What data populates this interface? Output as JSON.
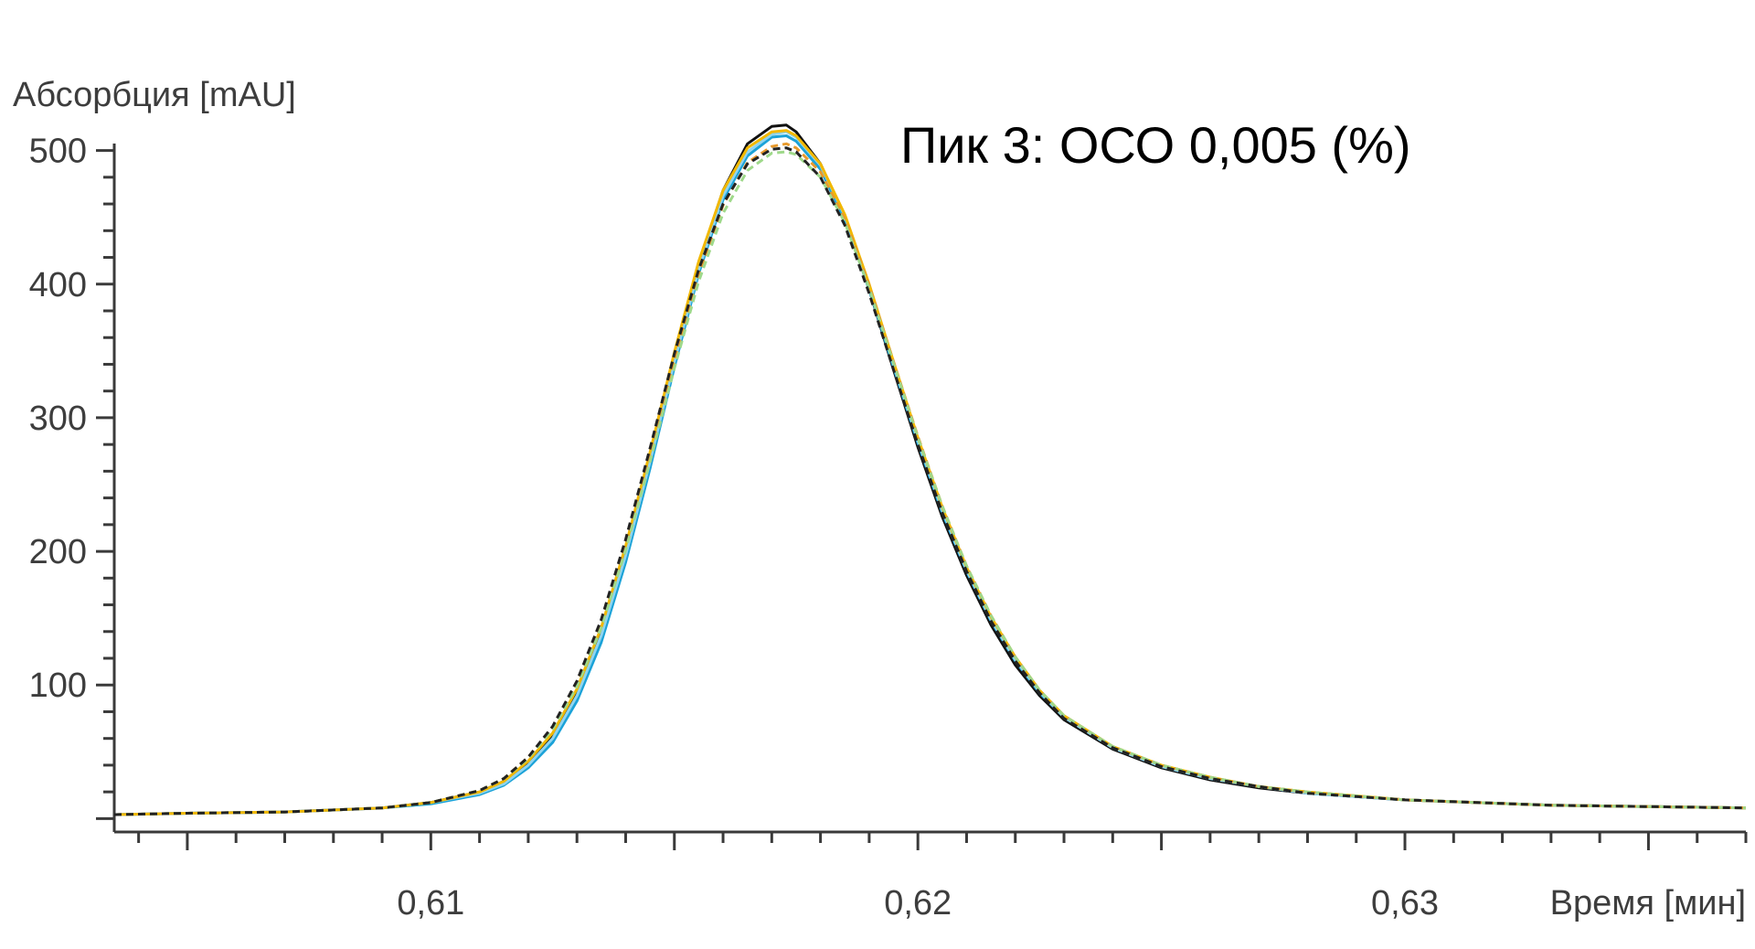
{
  "chart_data": {
    "type": "line",
    "title": "",
    "annotation": "Пик 3: ОСО 0,005 (%)",
    "ylabel": "Абсорбция [mAU]",
    "xlabel": "Время [мин]",
    "xlim": [
      0.6035,
      0.637
    ],
    "ylim": [
      -10,
      510
    ],
    "y_ticks": [
      100,
      200,
      300,
      400,
      500
    ],
    "y_tick_labels": [
      "100",
      "200",
      "300",
      "400",
      "500"
    ],
    "x_ticks": [
      0.61,
      0.62,
      0.63
    ],
    "x_tick_labels": [
      "0,61",
      "0,62",
      "0,63"
    ],
    "grid": false,
    "legend": "none",
    "series": [
      {
        "color": "#111111",
        "dashed": false,
        "values": [
          [
            0.6035,
            3
          ],
          [
            0.605,
            4
          ],
          [
            0.607,
            5
          ],
          [
            0.609,
            8
          ],
          [
            0.61,
            12
          ],
          [
            0.611,
            20
          ],
          [
            0.6115,
            28
          ],
          [
            0.612,
            42
          ],
          [
            0.6125,
            62
          ],
          [
            0.613,
            95
          ],
          [
            0.6135,
            140
          ],
          [
            0.614,
            200
          ],
          [
            0.6145,
            270
          ],
          [
            0.615,
            345
          ],
          [
            0.6155,
            415
          ],
          [
            0.616,
            470
          ],
          [
            0.6165,
            505
          ],
          [
            0.617,
            518
          ],
          [
            0.6173,
            519
          ],
          [
            0.6175,
            514
          ],
          [
            0.618,
            490
          ],
          [
            0.6185,
            450
          ],
          [
            0.619,
            396
          ],
          [
            0.6195,
            336
          ],
          [
            0.62,
            278
          ],
          [
            0.6205,
            226
          ],
          [
            0.621,
            182
          ],
          [
            0.6215,
            145
          ],
          [
            0.622,
            115
          ],
          [
            0.6225,
            92
          ],
          [
            0.623,
            74
          ],
          [
            0.624,
            52
          ],
          [
            0.625,
            38
          ],
          [
            0.626,
            29
          ],
          [
            0.627,
            23
          ],
          [
            0.628,
            19
          ],
          [
            0.63,
            14
          ],
          [
            0.633,
            10
          ],
          [
            0.637,
            8
          ]
        ]
      },
      {
        "color": "#1ba2d8",
        "dashed": false,
        "values": [
          [
            0.6035,
            3
          ],
          [
            0.605,
            4
          ],
          [
            0.607,
            5
          ],
          [
            0.609,
            8
          ],
          [
            0.61,
            11
          ],
          [
            0.611,
            18
          ],
          [
            0.6115,
            25
          ],
          [
            0.612,
            38
          ],
          [
            0.6125,
            57
          ],
          [
            0.613,
            88
          ],
          [
            0.6135,
            132
          ],
          [
            0.614,
            192
          ],
          [
            0.6145,
            262
          ],
          [
            0.615,
            338
          ],
          [
            0.6155,
            408
          ],
          [
            0.616,
            463
          ],
          [
            0.6165,
            496
          ],
          [
            0.617,
            510
          ],
          [
            0.6173,
            511
          ],
          [
            0.6175,
            507
          ],
          [
            0.618,
            486
          ],
          [
            0.6185,
            448
          ],
          [
            0.619,
            396
          ],
          [
            0.6195,
            338
          ],
          [
            0.62,
            281
          ],
          [
            0.6205,
            229
          ],
          [
            0.621,
            185
          ],
          [
            0.6215,
            148
          ],
          [
            0.622,
            118
          ],
          [
            0.6225,
            94
          ],
          [
            0.623,
            76
          ],
          [
            0.624,
            53
          ],
          [
            0.625,
            39
          ],
          [
            0.626,
            30
          ],
          [
            0.627,
            24
          ],
          [
            0.628,
            19
          ],
          [
            0.63,
            14
          ],
          [
            0.633,
            10
          ],
          [
            0.637,
            8
          ]
        ]
      },
      {
        "color": "#8fd4f0",
        "dashed": false,
        "values": [
          [
            0.6035,
            3
          ],
          [
            0.605,
            4
          ],
          [
            0.607,
            5
          ],
          [
            0.609,
            8
          ],
          [
            0.61,
            12
          ],
          [
            0.611,
            19
          ],
          [
            0.6115,
            26
          ],
          [
            0.612,
            40
          ],
          [
            0.6125,
            60
          ],
          [
            0.613,
            92
          ],
          [
            0.6135,
            137
          ],
          [
            0.614,
            197
          ],
          [
            0.6145,
            267
          ],
          [
            0.615,
            342
          ],
          [
            0.6155,
            411
          ],
          [
            0.616,
            466
          ],
          [
            0.6165,
            499
          ],
          [
            0.617,
            512
          ],
          [
            0.6173,
            514
          ],
          [
            0.6175,
            510
          ],
          [
            0.618,
            489
          ],
          [
            0.6185,
            451
          ],
          [
            0.619,
            399
          ],
          [
            0.6195,
            340
          ],
          [
            0.62,
            283
          ],
          [
            0.6205,
            231
          ],
          [
            0.621,
            186
          ],
          [
            0.6215,
            149
          ],
          [
            0.622,
            119
          ],
          [
            0.6225,
            95
          ],
          [
            0.623,
            76
          ],
          [
            0.624,
            53
          ],
          [
            0.625,
            39
          ],
          [
            0.626,
            30
          ],
          [
            0.627,
            24
          ],
          [
            0.628,
            19
          ],
          [
            0.63,
            14
          ],
          [
            0.633,
            10
          ],
          [
            0.637,
            8
          ]
        ]
      },
      {
        "color": "#f2b800",
        "dashed": false,
        "values": [
          [
            0.6035,
            3
          ],
          [
            0.605,
            4
          ],
          [
            0.607,
            5
          ],
          [
            0.609,
            8
          ],
          [
            0.61,
            12
          ],
          [
            0.611,
            20
          ],
          [
            0.6115,
            28
          ],
          [
            0.612,
            43
          ],
          [
            0.6125,
            64
          ],
          [
            0.613,
            97
          ],
          [
            0.6135,
            143
          ],
          [
            0.614,
            204
          ],
          [
            0.6145,
            274
          ],
          [
            0.615,
            349
          ],
          [
            0.6155,
            417
          ],
          [
            0.616,
            470
          ],
          [
            0.6165,
            502
          ],
          [
            0.617,
            514
          ],
          [
            0.6173,
            515
          ],
          [
            0.6175,
            511
          ],
          [
            0.618,
            490
          ],
          [
            0.6185,
            452
          ],
          [
            0.619,
            400
          ],
          [
            0.6195,
            342
          ],
          [
            0.62,
            285
          ],
          [
            0.6205,
            233
          ],
          [
            0.621,
            188
          ],
          [
            0.6215,
            151
          ],
          [
            0.622,
            121
          ],
          [
            0.6225,
            96
          ],
          [
            0.623,
            77
          ],
          [
            0.624,
            54
          ],
          [
            0.625,
            40
          ],
          [
            0.626,
            31
          ],
          [
            0.627,
            24
          ],
          [
            0.628,
            20
          ],
          [
            0.63,
            14
          ],
          [
            0.633,
            10
          ],
          [
            0.637,
            8
          ]
        ]
      },
      {
        "color": "#e89a2c",
        "dashed": true,
        "values": [
          [
            0.6035,
            3
          ],
          [
            0.605,
            4
          ],
          [
            0.607,
            5
          ],
          [
            0.609,
            8
          ],
          [
            0.61,
            12
          ],
          [
            0.611,
            21
          ],
          [
            0.6115,
            30
          ],
          [
            0.612,
            46
          ],
          [
            0.6125,
            68
          ],
          [
            0.613,
            101
          ],
          [
            0.6135,
            146
          ],
          [
            0.614,
            205
          ],
          [
            0.6145,
            272
          ],
          [
            0.615,
            343
          ],
          [
            0.6155,
            408
          ],
          [
            0.616,
            459
          ],
          [
            0.6165,
            491
          ],
          [
            0.617,
            503
          ],
          [
            0.6173,
            505
          ],
          [
            0.6175,
            502
          ],
          [
            0.618,
            484
          ],
          [
            0.6185,
            449
          ],
          [
            0.619,
            399
          ],
          [
            0.6195,
            342
          ],
          [
            0.62,
            286
          ],
          [
            0.6205,
            234
          ],
          [
            0.621,
            189
          ],
          [
            0.6215,
            152
          ],
          [
            0.622,
            121
          ],
          [
            0.6225,
            96
          ],
          [
            0.623,
            77
          ],
          [
            0.624,
            54
          ],
          [
            0.625,
            40
          ],
          [
            0.626,
            31
          ],
          [
            0.627,
            24
          ],
          [
            0.628,
            20
          ],
          [
            0.63,
            14
          ],
          [
            0.633,
            10
          ],
          [
            0.637,
            8
          ]
        ]
      },
      {
        "color": "#9fd98a",
        "dashed": true,
        "values": [
          [
            0.6035,
            3
          ],
          [
            0.605,
            4
          ],
          [
            0.607,
            5
          ],
          [
            0.609,
            8
          ],
          [
            0.61,
            12
          ],
          [
            0.611,
            21
          ],
          [
            0.6115,
            30
          ],
          [
            0.612,
            45
          ],
          [
            0.6125,
            67
          ],
          [
            0.613,
            99
          ],
          [
            0.6135,
            143
          ],
          [
            0.614,
            201
          ],
          [
            0.6145,
            267
          ],
          [
            0.615,
            337
          ],
          [
            0.6155,
            402
          ],
          [
            0.616,
            453
          ],
          [
            0.6165,
            485
          ],
          [
            0.617,
            498
          ],
          [
            0.6173,
            499
          ],
          [
            0.6175,
            497
          ],
          [
            0.618,
            480
          ],
          [
            0.6185,
            446
          ],
          [
            0.619,
            397
          ],
          [
            0.6195,
            341
          ],
          [
            0.62,
            285
          ],
          [
            0.6205,
            234
          ],
          [
            0.621,
            189
          ],
          [
            0.6215,
            152
          ],
          [
            0.622,
            121
          ],
          [
            0.6225,
            96
          ],
          [
            0.623,
            77
          ],
          [
            0.624,
            54
          ],
          [
            0.625,
            40
          ],
          [
            0.626,
            31
          ],
          [
            0.627,
            24
          ],
          [
            0.628,
            20
          ],
          [
            0.63,
            14
          ],
          [
            0.633,
            10
          ],
          [
            0.637,
            8
          ]
        ]
      },
      {
        "color": "#222222",
        "dashed": true,
        "values": [
          [
            0.6035,
            3
          ],
          [
            0.605,
            4
          ],
          [
            0.607,
            5
          ],
          [
            0.609,
            8
          ],
          [
            0.61,
            12
          ],
          [
            0.611,
            21
          ],
          [
            0.6115,
            30
          ],
          [
            0.612,
            46
          ],
          [
            0.6125,
            69
          ],
          [
            0.613,
            103
          ],
          [
            0.6135,
            149
          ],
          [
            0.614,
            209
          ],
          [
            0.6145,
            277
          ],
          [
            0.615,
            348
          ],
          [
            0.6155,
            411
          ],
          [
            0.616,
            460
          ],
          [
            0.6165,
            490
          ],
          [
            0.617,
            501
          ],
          [
            0.6173,
            502
          ],
          [
            0.6175,
            499
          ],
          [
            0.618,
            480
          ],
          [
            0.6185,
            444
          ],
          [
            0.619,
            393
          ],
          [
            0.6195,
            336
          ],
          [
            0.62,
            280
          ],
          [
            0.6205,
            229
          ],
          [
            0.621,
            185
          ],
          [
            0.6215,
            148
          ],
          [
            0.622,
            118
          ],
          [
            0.6225,
            94
          ],
          [
            0.623,
            75
          ],
          [
            0.624,
            53
          ],
          [
            0.625,
            39
          ],
          [
            0.626,
            30
          ],
          [
            0.627,
            24
          ],
          [
            0.628,
            19
          ],
          [
            0.63,
            14
          ],
          [
            0.633,
            10
          ],
          [
            0.637,
            8
          ]
        ]
      }
    ]
  }
}
